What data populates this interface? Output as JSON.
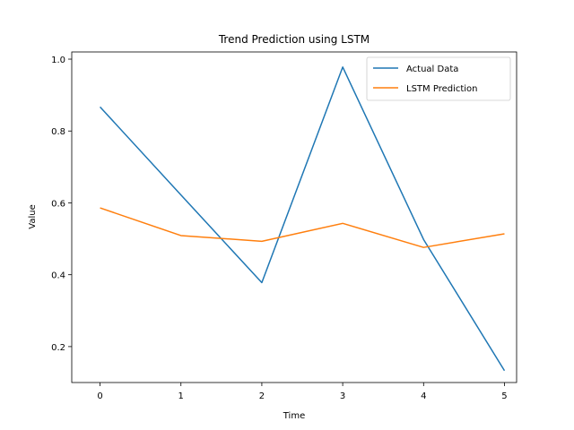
{
  "chart_data": {
    "type": "line",
    "title": "Trend Prediction using LSTM",
    "xlabel": "Time",
    "ylabel": "Value",
    "x": [
      0,
      1,
      2,
      3,
      4,
      5
    ],
    "xlim": [
      -0.35,
      5.15
    ],
    "ylim": [
      0.1,
      1.02
    ],
    "xticks": [
      "0",
      "1",
      "2",
      "3",
      "4",
      "5"
    ],
    "yticks": [
      0.2,
      0.4,
      0.6,
      0.8,
      1.0
    ],
    "ytick_labels": [
      "0.2",
      "0.4",
      "0.6",
      "0.8",
      "1.0"
    ],
    "grid": false,
    "legend_position": "top-right",
    "series": [
      {
        "name": "Actual Data",
        "color": "#1f77b4",
        "values": [
          0.867,
          0.622,
          0.378,
          0.978,
          0.498,
          0.133
        ]
      },
      {
        "name": "LSTM Prediction",
        "color": "#ff7f0e",
        "values": [
          0.586,
          0.509,
          0.493,
          0.543,
          0.476,
          0.514
        ]
      }
    ]
  }
}
